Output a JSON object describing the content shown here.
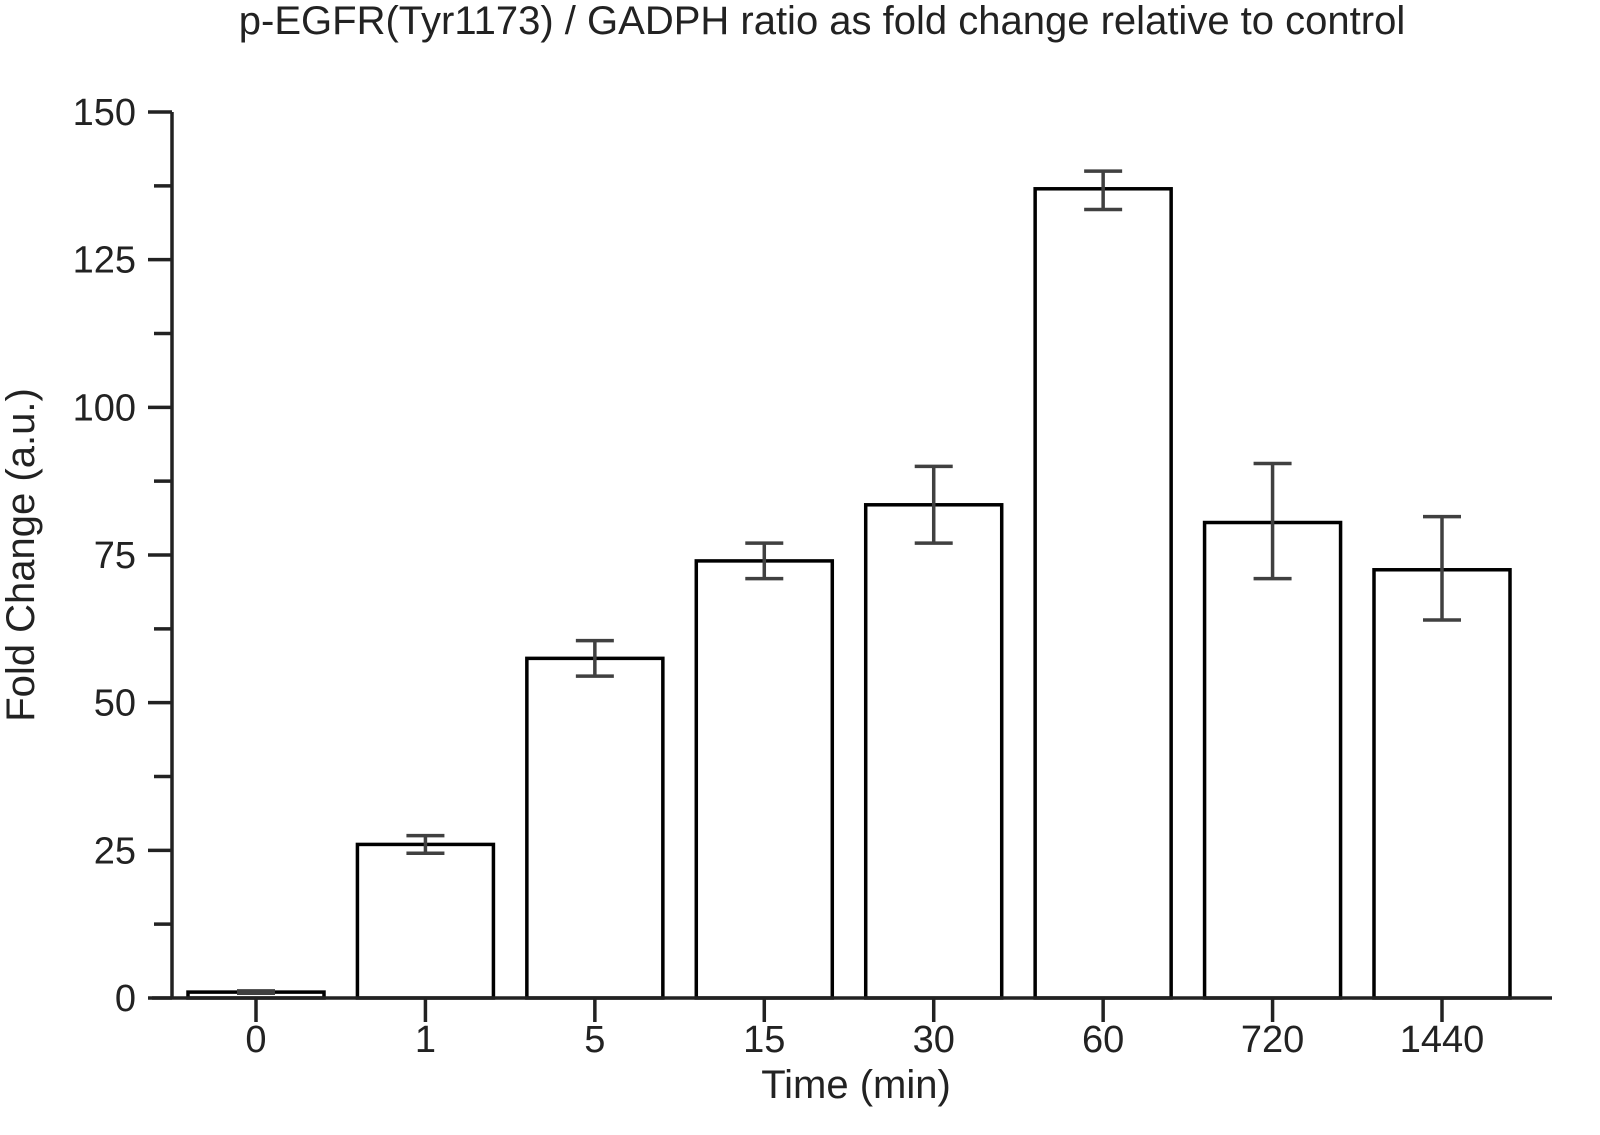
{
  "chart_data": {
    "type": "bar",
    "title": "p-EGFR(Tyr1173) / GADPH ratio as fold change relative to control",
    "xlabel": "Time (min)",
    "ylabel": "Fold Change (a.u.)",
    "categories": [
      "0",
      "1",
      "5",
      "15",
      "30",
      "60",
      "720",
      "1440"
    ],
    "values": [
      1,
      26,
      57.5,
      74,
      83.5,
      137,
      80.5,
      72.5
    ],
    "error_bars": [
      {
        "low": 0.8,
        "high": 1.2
      },
      {
        "low": 24.5,
        "high": 27.5
      },
      {
        "low": 54.5,
        "high": 60.5
      },
      {
        "low": 71,
        "high": 77
      },
      {
        "low": 77,
        "high": 90
      },
      {
        "low": 133.5,
        "high": 140
      },
      {
        "low": 71,
        "high": 90.5
      },
      {
        "low": 64,
        "high": 81.5
      }
    ],
    "ylim": [
      0,
      150
    ],
    "yticks": [
      0,
      25,
      50,
      75,
      100,
      125,
      150
    ],
    "yminor_step": 12.5,
    "grid": false,
    "colors": {
      "bar_fill": "#ffffff",
      "bar_stroke": "#000000",
      "error_bar": "#404040",
      "axis": "#222222"
    }
  }
}
